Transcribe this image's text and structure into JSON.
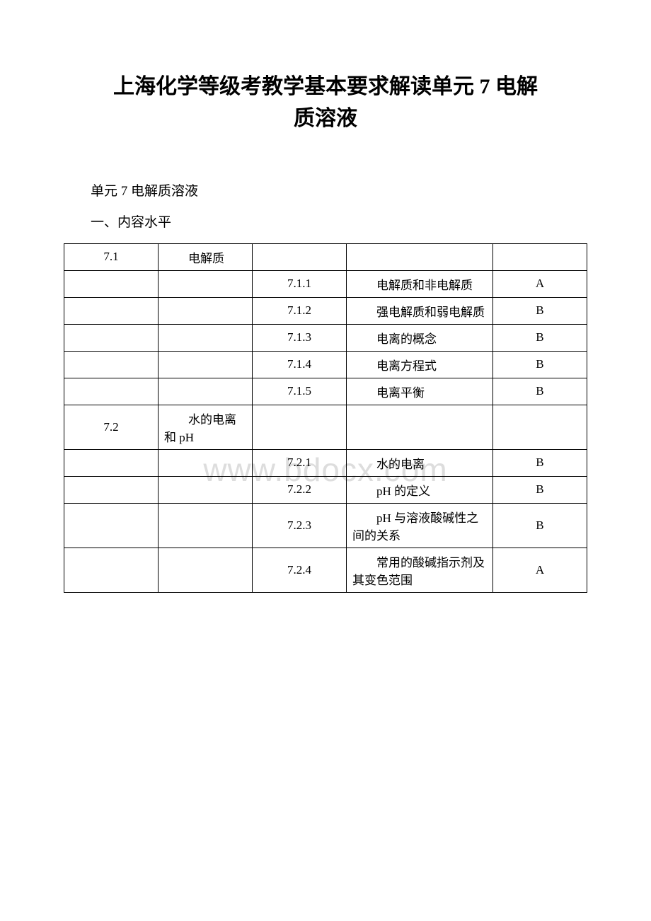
{
  "title_line1": "上海化学等级考教学基本要求解读单元 7 电解",
  "title_line2": "质溶液",
  "section_header": "单元 7 电解质溶液",
  "section_sub": "一、内容水平",
  "watermark": "www.bdocx.com",
  "table": {
    "columns": [
      "col1",
      "col2",
      "col3",
      "col4",
      "col5"
    ],
    "rows": [
      [
        "7.1",
        "电解质",
        "",
        "",
        ""
      ],
      [
        "",
        "",
        "7.1.1",
        "电解质和非电解质",
        "A"
      ],
      [
        "",
        "",
        "7.1.2",
        "强电解质和弱电解质",
        "B"
      ],
      [
        "",
        "",
        "7.1.3",
        "电离的概念",
        "B"
      ],
      [
        "",
        "",
        "7.1.4",
        "电离方程式",
        "B"
      ],
      [
        "",
        "",
        "7.1.5",
        "电离平衡",
        "B"
      ],
      [
        "7.2",
        "水的电离和 pH",
        "",
        "",
        ""
      ],
      [
        "",
        "",
        "7.2.1",
        "水的电离",
        "B"
      ],
      [
        "",
        "",
        "7.2.2",
        "pH 的定义",
        "B"
      ],
      [
        "",
        "",
        "7.2.3",
        "pH 与溶液酸碱性之间的关系",
        "B"
      ],
      [
        "",
        "",
        "7.2.4",
        "常用的酸碱指示剂及其变色范围",
        "A"
      ]
    ]
  }
}
